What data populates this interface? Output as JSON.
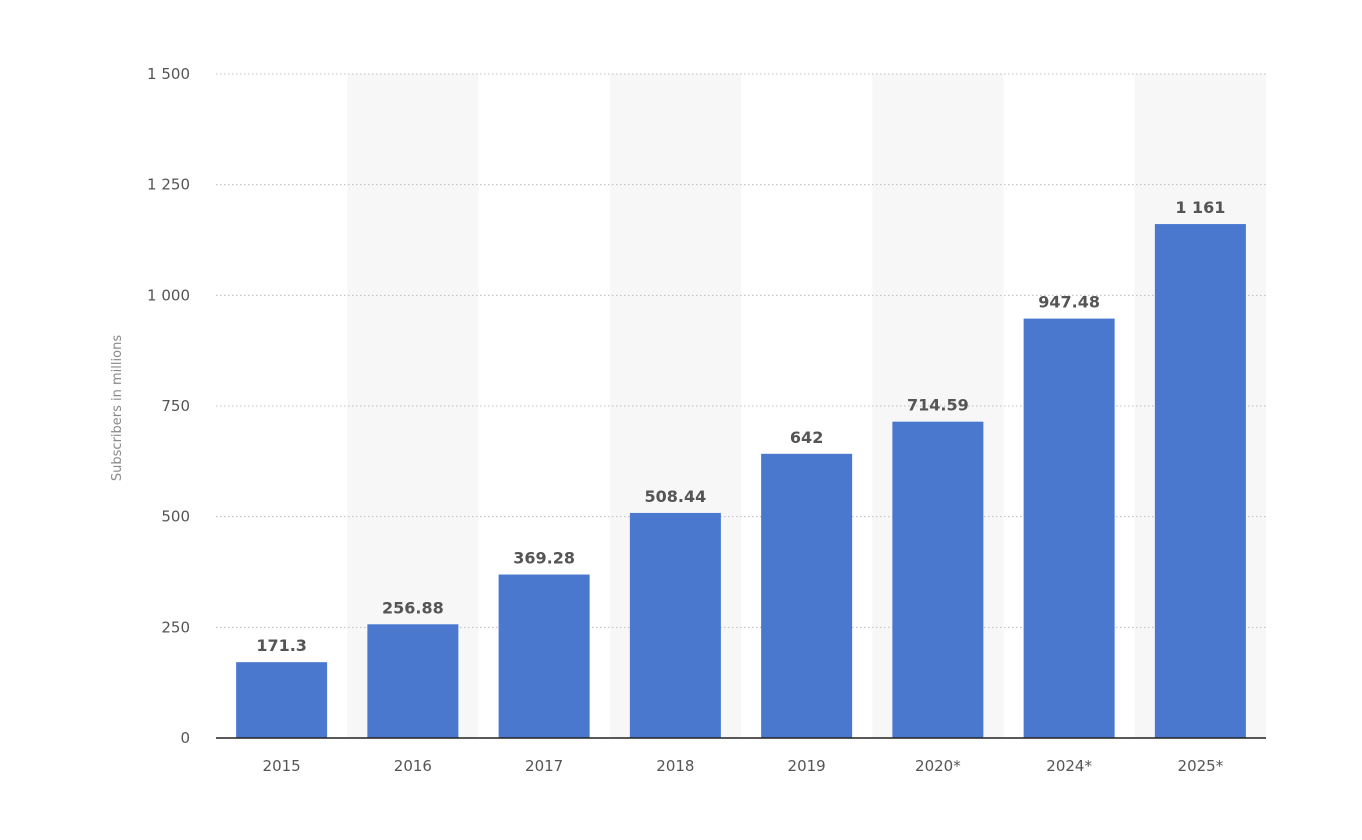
{
  "chart_data": {
    "type": "bar",
    "title": "",
    "xlabel": "",
    "ylabel": "Subscribers in millions",
    "categories": [
      "2015",
      "2016",
      "2017",
      "2018",
      "2019",
      "2020*",
      "2024*",
      "2025*"
    ],
    "values": [
      171.3,
      256.88,
      369.28,
      508.44,
      642,
      714.59,
      947.48,
      1161
    ],
    "value_labels": [
      "171.3",
      "256.88",
      "369.28",
      "508.44",
      "642",
      "714.59",
      "947.48",
      "1 161"
    ],
    "ylim": [
      0,
      1500
    ],
    "yticks": [
      0,
      250,
      500,
      750,
      1000,
      1250,
      1500
    ],
    "ytick_labels": [
      "0",
      "250",
      "500",
      "750",
      "1 000",
      "1 250",
      "1 500"
    ],
    "grid": true,
    "alternating_bands": true,
    "legend": "none",
    "bar_color": "#4a78cf",
    "band_color": "#f7f7f7",
    "label_color": "#555555"
  }
}
